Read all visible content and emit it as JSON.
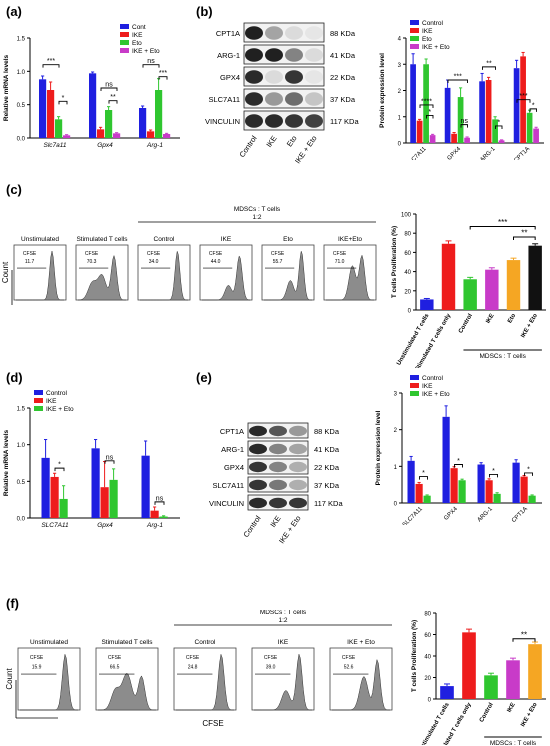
{
  "panel_labels": {
    "a": "(a)",
    "b": "(b)",
    "c": "(c)",
    "d": "(d)",
    "e": "(e)",
    "f": "(f)"
  },
  "colors": {
    "blue": "#1f1fe0",
    "red": "#ee1c1c",
    "green": "#2fc62f",
    "magenta": "#c83bc8",
    "black": "#111111",
    "orange": "#f5a623",
    "gray": "#9a9a9a"
  },
  "chart_data": [
    {
      "id": "a",
      "type": "bar",
      "ylabel": "Relative mRNA levels",
      "categories": [
        "Slc7a11",
        "Gpx4",
        "Arg-1"
      ],
      "ylim": [
        0,
        1.5
      ],
      "yticks": [
        "0.0",
        "0.5",
        "1.0",
        "1.5"
      ],
      "legend": [
        "Cont",
        "IKE",
        "Eto",
        "IKE + Eto"
      ],
      "series": [
        {
          "name": "Cont",
          "values": [
            0.88,
            0.97,
            0.45
          ],
          "err": [
            0.05,
            0.02,
            0.03
          ]
        },
        {
          "name": "IKE",
          "values": [
            0.72,
            0.13,
            0.1
          ],
          "err": [
            0.12,
            0.03,
            0.02
          ]
        },
        {
          "name": "Eto",
          "values": [
            0.28,
            0.42,
            0.72
          ],
          "err": [
            0.04,
            0.05,
            0.17
          ]
        },
        {
          "name": "IKE + Eto",
          "values": [
            0.04,
            0.07,
            0.06
          ],
          "err": [
            0.01,
            0.01,
            0.01
          ]
        }
      ],
      "sig": [
        {
          "cat": 0,
          "from": 0,
          "to": 2,
          "label": "***",
          "y": 1.1
        },
        {
          "cat": 0,
          "from": 2,
          "to": 3,
          "label": "*",
          "y": 0.55
        },
        {
          "cat": 1,
          "from": 1,
          "to": 3,
          "label": "ns",
          "y": 0.75
        },
        {
          "cat": 1,
          "from": 2,
          "to": 3,
          "label": "**",
          "y": 0.56
        },
        {
          "cat": 2,
          "from": 0,
          "to": 2,
          "label": "ns",
          "y": 1.1
        },
        {
          "cat": 2,
          "from": 2,
          "to": 3,
          "label": "***",
          "y": 0.92
        }
      ]
    },
    {
      "id": "b",
      "type": "bar",
      "ylabel": "Protein expression level",
      "categories": [
        "SLC7A11",
        "GPX4",
        "ARG-1",
        "CPT1A"
      ],
      "ylim": [
        0,
        4
      ],
      "yticks": [
        "0",
        "1",
        "2",
        "3",
        "4"
      ],
      "legend": [
        "Control",
        "IKE",
        "Eto",
        "IKE + Eto"
      ],
      "series": [
        {
          "name": "Control",
          "values": [
            3.0,
            2.1,
            2.35,
            2.85
          ],
          "err": [
            0.4,
            0.3,
            0.3,
            0.3
          ]
        },
        {
          "name": "IKE",
          "values": [
            0.85,
            0.35,
            2.4,
            3.3
          ],
          "err": [
            0.05,
            0.05,
            0.1,
            0.15
          ]
        },
        {
          "name": "Eto",
          "values": [
            3.0,
            1.75,
            0.9,
            1.15
          ],
          "err": [
            0.2,
            0.35,
            0.1,
            0.1
          ]
        },
        {
          "name": "IKE + Eto",
          "values": [
            0.3,
            0.2,
            0.1,
            0.55
          ],
          "err": [
            0.03,
            0.03,
            0.02,
            0.05
          ]
        }
      ],
      "sig": [
        {
          "cat": 0,
          "from": 1,
          "to": 3,
          "label": "****",
          "y": 1.45
        },
        {
          "cat": 0,
          "from": 2,
          "to": 3,
          "label": "*",
          "y": 1.05
        },
        {
          "cat": 1,
          "from": 0,
          "to": 3,
          "label": "***",
          "y": 2.4
        },
        {
          "cat": 1,
          "from": 2,
          "to": 3,
          "label": "ns",
          "y": 0.7
        },
        {
          "cat": 2,
          "from": 0,
          "to": 2,
          "label": "**",
          "y": 2.9
        },
        {
          "cat": 2,
          "from": 2,
          "to": 3,
          "label": "*",
          "y": 0.65
        },
        {
          "cat": 3,
          "from": 0,
          "to": 2,
          "label": "***",
          "y": 1.65
        },
        {
          "cat": 3,
          "from": 2,
          "to": 3,
          "label": "*",
          "y": 1.3
        }
      ]
    },
    {
      "id": "c",
      "type": "bar",
      "ylabel": "T cells Proliferation (%)",
      "categories": [
        "Unstimulated T cells",
        "Stimulated T cells only",
        "Control",
        "IKE",
        "Eto",
        "IKE + Eto"
      ],
      "ylim": [
        0,
        100
      ],
      "yticks": [
        "0",
        "20",
        "40",
        "60",
        "80",
        "100"
      ],
      "colors": [
        "blue",
        "red",
        "green",
        "magenta",
        "orange",
        "black"
      ],
      "values": [
        11,
        69,
        32,
        42,
        52,
        67
      ],
      "err": [
        1,
        3,
        2,
        2,
        2,
        2
      ],
      "group_label": "MDSCs : T cells",
      "sig": [
        {
          "from": 2,
          "to": 5,
          "label": "***",
          "y": 87
        },
        {
          "from": 4,
          "to": 5,
          "label": "**",
          "y": 76
        }
      ]
    },
    {
      "id": "d",
      "type": "bar",
      "ylabel": "Relative mRNA levels",
      "categories": [
        "SLC7A11",
        "Gpx4",
        "Arg-1"
      ],
      "ylim": [
        0,
        1.5
      ],
      "yticks": [
        "0.0",
        "0.5",
        "1.0",
        "1.5"
      ],
      "legend": [
        "Control",
        "IKE",
        "IKE + Eto"
      ],
      "series": [
        {
          "name": "Control",
          "values": [
            0.82,
            0.95,
            0.85
          ],
          "err": [
            0.25,
            0.12,
            0.2
          ]
        },
        {
          "name": "IKE",
          "values": [
            0.56,
            0.42,
            0.1
          ],
          "err": [
            0.05,
            0.35,
            0.05
          ]
        },
        {
          "name": "IKE + Eto",
          "values": [
            0.26,
            0.52,
            0.02
          ],
          "err": [
            0.18,
            0.15,
            0.01
          ]
        }
      ],
      "sig": [
        {
          "cat": 0,
          "from": 1,
          "to": 2,
          "label": "*",
          "y": 0.68
        },
        {
          "cat": 1,
          "from": 1,
          "to": 2,
          "label": "ns",
          "y": 0.78
        },
        {
          "cat": 2,
          "from": 1,
          "to": 2,
          "label": "ns",
          "y": 0.22
        }
      ]
    },
    {
      "id": "e",
      "type": "bar",
      "ylabel": "Protein expression level",
      "categories": [
        "SLC7A11",
        "GPX4",
        "ARG-1",
        "CPT1A"
      ],
      "ylim": [
        0,
        3
      ],
      "yticks": [
        "0",
        "1",
        "2",
        "3"
      ],
      "legend": [
        "Control",
        "IKE",
        "IKE + Eto"
      ],
      "series": [
        {
          "name": "Control",
          "values": [
            1.15,
            2.35,
            1.05,
            1.1
          ],
          "err": [
            0.12,
            0.3,
            0.05,
            0.08
          ]
        },
        {
          "name": "IKE",
          "values": [
            0.52,
            0.95,
            0.62,
            0.72
          ],
          "err": [
            0.04,
            0.04,
            0.04,
            0.03
          ]
        },
        {
          "name": "IKE + Eto",
          "values": [
            0.2,
            0.62,
            0.25,
            0.2
          ],
          "err": [
            0.02,
            0.03,
            0.03,
            0.02
          ]
        }
      ],
      "sig": [
        {
          "cat": 0,
          "from": 1,
          "to": 2,
          "label": "*",
          "y": 0.72
        },
        {
          "cat": 1,
          "from": 1,
          "to": 2,
          "label": "*",
          "y": 1.05
        },
        {
          "cat": 2,
          "from": 1,
          "to": 2,
          "label": "*",
          "y": 0.78
        },
        {
          "cat": 3,
          "from": 1,
          "to": 2,
          "label": "*",
          "y": 0.82
        }
      ]
    },
    {
      "id": "f",
      "type": "bar",
      "ylabel": "T cells Proliferation (%)",
      "categories": [
        "Unstimulated T cells",
        "Stimulated T cells only",
        "Control",
        "IKE",
        "IKE + Eto"
      ],
      "ylim": [
        0,
        80
      ],
      "yticks": [
        "0",
        "20",
        "40",
        "60",
        "80"
      ],
      "colors": [
        "blue",
        "red",
        "green",
        "magenta",
        "orange"
      ],
      "values": [
        12,
        62,
        22,
        36,
        51
      ],
      "err": [
        2,
        3,
        2,
        2,
        2
      ],
      "group_label": "MDSCs : T cells",
      "sig": [
        {
          "from": 3,
          "to": 4,
          "label": "**",
          "y": 56
        }
      ]
    }
  ],
  "blot_b": {
    "rows": [
      {
        "name": "CPT1A",
        "kda": "88 KDa"
      },
      {
        "name": "ARG-1",
        "kda": "41 KDa"
      },
      {
        "name": "GPX4",
        "kda": "22 KDa"
      },
      {
        "name": "SLC7A11",
        "kda": "37 KDa"
      },
      {
        "name": "VINCULIN",
        "kda": "117 KDa"
      }
    ],
    "lanes": [
      "Control",
      "IKE",
      "Eto",
      "IKE + Eto"
    ]
  },
  "blot_e": {
    "rows": [
      {
        "name": "CPT1A",
        "kda": "88 KDa"
      },
      {
        "name": "ARG-1",
        "kda": "41 KDa"
      },
      {
        "name": "GPX4",
        "kda": "22 KDa"
      },
      {
        "name": "SLC7A11",
        "kda": "37 KDa"
      },
      {
        "name": "VINCULIN",
        "kda": "117 KDa"
      }
    ],
    "lanes": [
      "Control",
      "IKE",
      "IKE + Eto"
    ]
  },
  "flow_c": {
    "group_title": "MDSCs : T cells",
    "ratio": "1:2",
    "xlabel": "CFSE",
    "ylabel": "Count",
    "histograms": [
      {
        "title": "Unstimulated",
        "gate": "CFSE",
        "value": "11.7"
      },
      {
        "title": "Stimulated T cells",
        "gate": "CFSE",
        "value": "70.3"
      },
      {
        "title": "Control",
        "gate": "CFSE",
        "value": "34.0"
      },
      {
        "title": "IKE",
        "gate": "CFSE",
        "value": "44.0"
      },
      {
        "title": "Eto",
        "gate": "CFSE",
        "value": "55.7"
      },
      {
        "title": "IKE+Eto",
        "gate": "CFSE",
        "value": "71.0"
      }
    ]
  },
  "flow_f": {
    "group_title": "MDSCs : T cells",
    "ratio": "1:2",
    "xlabel": "CFSE",
    "ylabel": "Count",
    "histograms": [
      {
        "title": "Unstimulated",
        "gate": "CFSE",
        "value": "15.9"
      },
      {
        "title": "Stimulated T cells",
        "gate": "CFSE",
        "value": "66.5"
      },
      {
        "title": "Control",
        "gate": "CFSE",
        "value": "24.8"
      },
      {
        "title": "IKE",
        "gate": "CFSE",
        "value": "39.0"
      },
      {
        "title": "IKE + Eto",
        "gate": "CFSE",
        "value": "52.6"
      }
    ]
  }
}
